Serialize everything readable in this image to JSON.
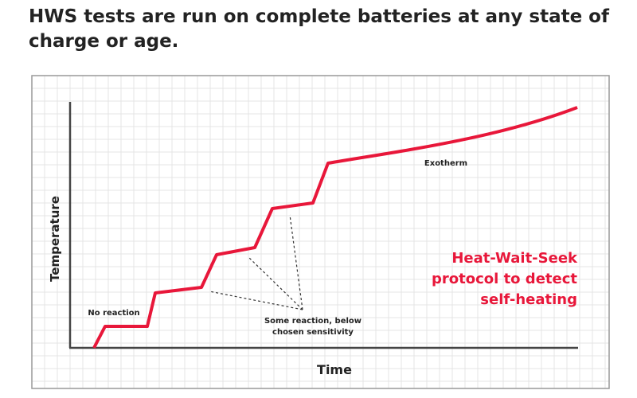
{
  "header": {
    "title": "HWS tests are run on complete batteries at any state of charge or age."
  },
  "diagram": {
    "y_axis_label": "Temperature",
    "x_axis_label": "Time",
    "annotations": {
      "no_reaction": "No reaction",
      "exotherm": "Exotherm",
      "some_reaction": [
        "Some reaction, below",
        "chosen sensitivity"
      ],
      "protocol": [
        "Heat-Wait-Seek",
        "protocol to detect",
        "self-heating"
      ]
    }
  }
}
